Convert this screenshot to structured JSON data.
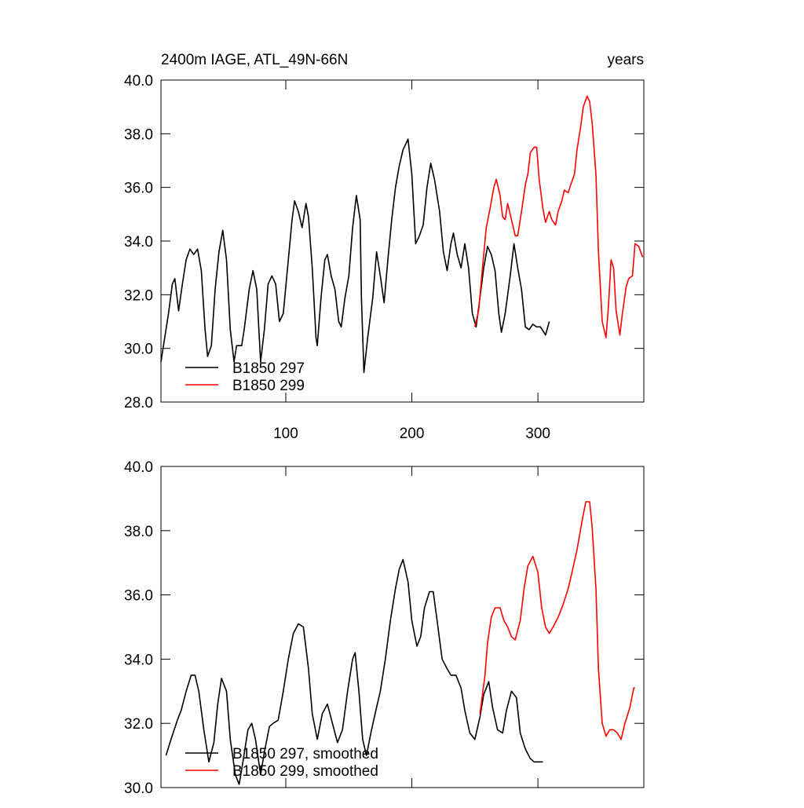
{
  "chart_data": [
    {
      "type": "line",
      "title": "2400m IAGE, ATL_49N-66N",
      "right_title": "years",
      "xlim": [
        1,
        384
      ],
      "xticks": [
        100,
        200,
        300
      ],
      "show_xtick_labels": true,
      "ylim": [
        28,
        40
      ],
      "yticks": [
        {
          "value": 28,
          "label": "28.0"
        },
        {
          "value": 30,
          "label": "30.0"
        },
        {
          "value": 32,
          "label": "32.0"
        },
        {
          "value": 34,
          "label": "34.0"
        },
        {
          "value": 36,
          "label": "36.0"
        },
        {
          "value": 38,
          "label": "38.0"
        },
        {
          "value": 40,
          "label": "40.0"
        }
      ],
      "legend": "lower left",
      "series": [
        {
          "name": "B1850 297",
          "color": "#000000",
          "x": [
            1,
            3,
            7,
            10,
            12,
            15,
            18,
            21,
            24,
            27,
            30,
            33,
            36,
            38,
            41,
            44,
            47,
            50,
            53,
            56,
            59,
            61,
            65,
            67,
            71,
            74,
            77,
            80,
            83,
            86,
            89,
            92,
            95,
            98,
            102,
            105,
            107,
            110,
            113,
            116,
            118,
            121,
            124,
            125,
            128,
            131,
            133,
            136,
            139,
            142,
            144,
            147,
            150,
            153,
            156,
            159,
            160,
            162,
            165,
            169,
            172,
            175,
            178,
            181,
            184,
            187,
            190,
            193,
            197,
            200,
            203,
            206,
            209,
            212,
            215,
            218,
            222,
            225,
            228,
            231,
            233,
            236,
            239,
            242,
            245,
            248,
            251,
            254,
            257,
            260,
            263,
            266,
            269,
            271,
            274,
            278,
            281,
            284,
            287,
            290,
            293,
            296,
            299,
            302,
            306,
            309
          ],
          "values": [
            29.5,
            30.1,
            31.3,
            32.4,
            32.6,
            31.4,
            32.4,
            33.3,
            33.7,
            33.5,
            33.7,
            32.9,
            30.7,
            29.7,
            30.1,
            32.2,
            33.6,
            34.4,
            33.3,
            30.7,
            29.5,
            30.1,
            30.1,
            30.7,
            32.2,
            32.9,
            32.2,
            29.5,
            30.7,
            32.4,
            32.7,
            32.4,
            31.0,
            31.3,
            33.3,
            34.8,
            35.5,
            35.1,
            34.5,
            35.4,
            34.9,
            33.0,
            30.4,
            30.1,
            31.9,
            33.3,
            33.5,
            32.7,
            32.2,
            31.0,
            30.8,
            31.9,
            32.7,
            34.5,
            35.7,
            34.8,
            31.9,
            29.1,
            30.4,
            31.9,
            33.6,
            32.7,
            31.7,
            33.3,
            34.8,
            36.0,
            36.8,
            37.4,
            37.8,
            36.5,
            33.9,
            34.2,
            34.6,
            36.0,
            36.9,
            36.3,
            35.1,
            33.6,
            32.9,
            33.9,
            34.3,
            33.5,
            33.0,
            33.9,
            33.0,
            31.3,
            30.8,
            31.9,
            33.0,
            33.8,
            33.5,
            32.9,
            31.3,
            30.6,
            31.3,
            32.7,
            33.9,
            33.0,
            32.2,
            30.8,
            30.7,
            30.9,
            30.8,
            30.8,
            30.5,
            31.0
          ]
        },
        {
          "name": "B1850 299",
          "color": "#ff0000",
          "x": [
            250,
            253,
            256,
            259,
            262,
            265,
            267,
            270,
            272,
            274,
            276,
            279,
            282,
            284,
            287,
            290,
            292,
            294,
            297,
            299,
            301,
            304,
            306,
            309,
            311,
            314,
            316,
            319,
            321,
            324,
            326,
            329,
            331,
            334,
            336,
            339,
            341,
            343,
            346,
            348,
            351,
            354,
            356,
            358,
            360,
            362,
            365,
            367,
            370,
            372,
            375,
            377,
            380,
            383
          ],
          "values": [
            30.8,
            31.4,
            33.0,
            34.5,
            35.2,
            36.0,
            36.3,
            35.7,
            34.9,
            34.8,
            35.4,
            34.8,
            34.2,
            34.2,
            35.1,
            36.1,
            36.5,
            37.3,
            37.5,
            37.5,
            36.3,
            35.2,
            34.7,
            35.1,
            34.8,
            34.6,
            35.1,
            35.5,
            35.9,
            35.8,
            36.1,
            36.5,
            37.4,
            38.3,
            39.0,
            39.4,
            39.2,
            38.4,
            36.5,
            33.6,
            31.0,
            30.4,
            31.6,
            33.3,
            33.0,
            31.4,
            30.5,
            31.3,
            32.3,
            32.6,
            32.7,
            33.9,
            33.8,
            33.4
          ]
        }
      ]
    },
    {
      "type": "line",
      "xlim": [
        1,
        384
      ],
      "xticks": [
        100,
        200,
        300
      ],
      "show_xtick_labels": false,
      "ylim": [
        30,
        40
      ],
      "yticks": [
        {
          "value": 30,
          "label": "30.0"
        },
        {
          "value": 32,
          "label": "32.0"
        },
        {
          "value": 34,
          "label": "34.0"
        },
        {
          "value": 36,
          "label": "36.0"
        },
        {
          "value": 38,
          "label": "38.0"
        },
        {
          "value": 40,
          "label": "40.0"
        }
      ],
      "legend": "lower left",
      "series": [
        {
          "name": "B1850 297, smoothed",
          "color": "#000000",
          "x": [
            5,
            9,
            14,
            17,
            21,
            25,
            28,
            31,
            35,
            39,
            43,
            46,
            49,
            53,
            56,
            60,
            63,
            66,
            70,
            73,
            76,
            80,
            83,
            87,
            90,
            94,
            98,
            102,
            106,
            110,
            114,
            118,
            121,
            125,
            129,
            133,
            137,
            141,
            145,
            149,
            153,
            155,
            158,
            161,
            164,
            168,
            172,
            175,
            179,
            183,
            187,
            190,
            193,
            197,
            200,
            204,
            207,
            210,
            214,
            217,
            220,
            224,
            228,
            231,
            235,
            239,
            242,
            246,
            250,
            254,
            257,
            261,
            264,
            268,
            272,
            275,
            279,
            283,
            286,
            290,
            294,
            297,
            300,
            304
          ],
          "values": [
            31.0,
            31.5,
            32.1,
            32.4,
            33.0,
            33.5,
            33.5,
            33.0,
            31.8,
            30.8,
            31.4,
            32.6,
            33.4,
            33.0,
            31.5,
            30.4,
            30.1,
            30.8,
            31.8,
            32.0,
            31.5,
            30.4,
            31.1,
            31.9,
            32.0,
            32.1,
            33.0,
            34.0,
            34.8,
            35.1,
            35.0,
            33.7,
            32.3,
            31.5,
            32.3,
            32.6,
            32.0,
            31.4,
            31.8,
            33.0,
            34.0,
            34.2,
            33.0,
            31.5,
            31.0,
            31.8,
            32.5,
            33.0,
            34.0,
            35.2,
            36.2,
            36.8,
            37.1,
            36.4,
            35.2,
            34.4,
            34.7,
            35.6,
            36.1,
            36.1,
            35.2,
            34.0,
            33.7,
            33.5,
            33.5,
            33.1,
            32.4,
            31.7,
            31.5,
            32.2,
            32.9,
            33.3,
            32.5,
            31.8,
            31.7,
            32.4,
            33.0,
            32.8,
            31.7,
            31.2,
            30.9,
            30.8,
            30.8,
            30.8
          ]
        },
        {
          "name": "B1850 299, smoothed",
          "color": "#ff0000",
          "x": [
            254,
            258,
            260,
            263,
            266,
            270,
            273,
            276,
            279,
            282,
            286,
            289,
            292,
            296,
            300,
            303,
            306,
            309,
            312,
            316,
            320,
            324,
            327,
            331,
            335,
            338,
            341,
            343,
            346,
            348,
            351,
            354,
            357,
            360,
            363,
            366,
            369,
            373,
            376,
            377
          ],
          "values": [
            32.3,
            33.5,
            34.5,
            35.3,
            35.6,
            35.6,
            35.2,
            35.0,
            34.7,
            34.6,
            35.2,
            36.2,
            36.9,
            37.2,
            36.7,
            35.6,
            35.0,
            34.8,
            35.0,
            35.3,
            35.7,
            36.2,
            36.7,
            37.4,
            38.3,
            38.9,
            38.9,
            38.1,
            36.2,
            33.7,
            32.0,
            31.6,
            31.8,
            31.8,
            31.7,
            31.5,
            32.0,
            32.5,
            33.1,
            33.1
          ]
        }
      ]
    }
  ]
}
